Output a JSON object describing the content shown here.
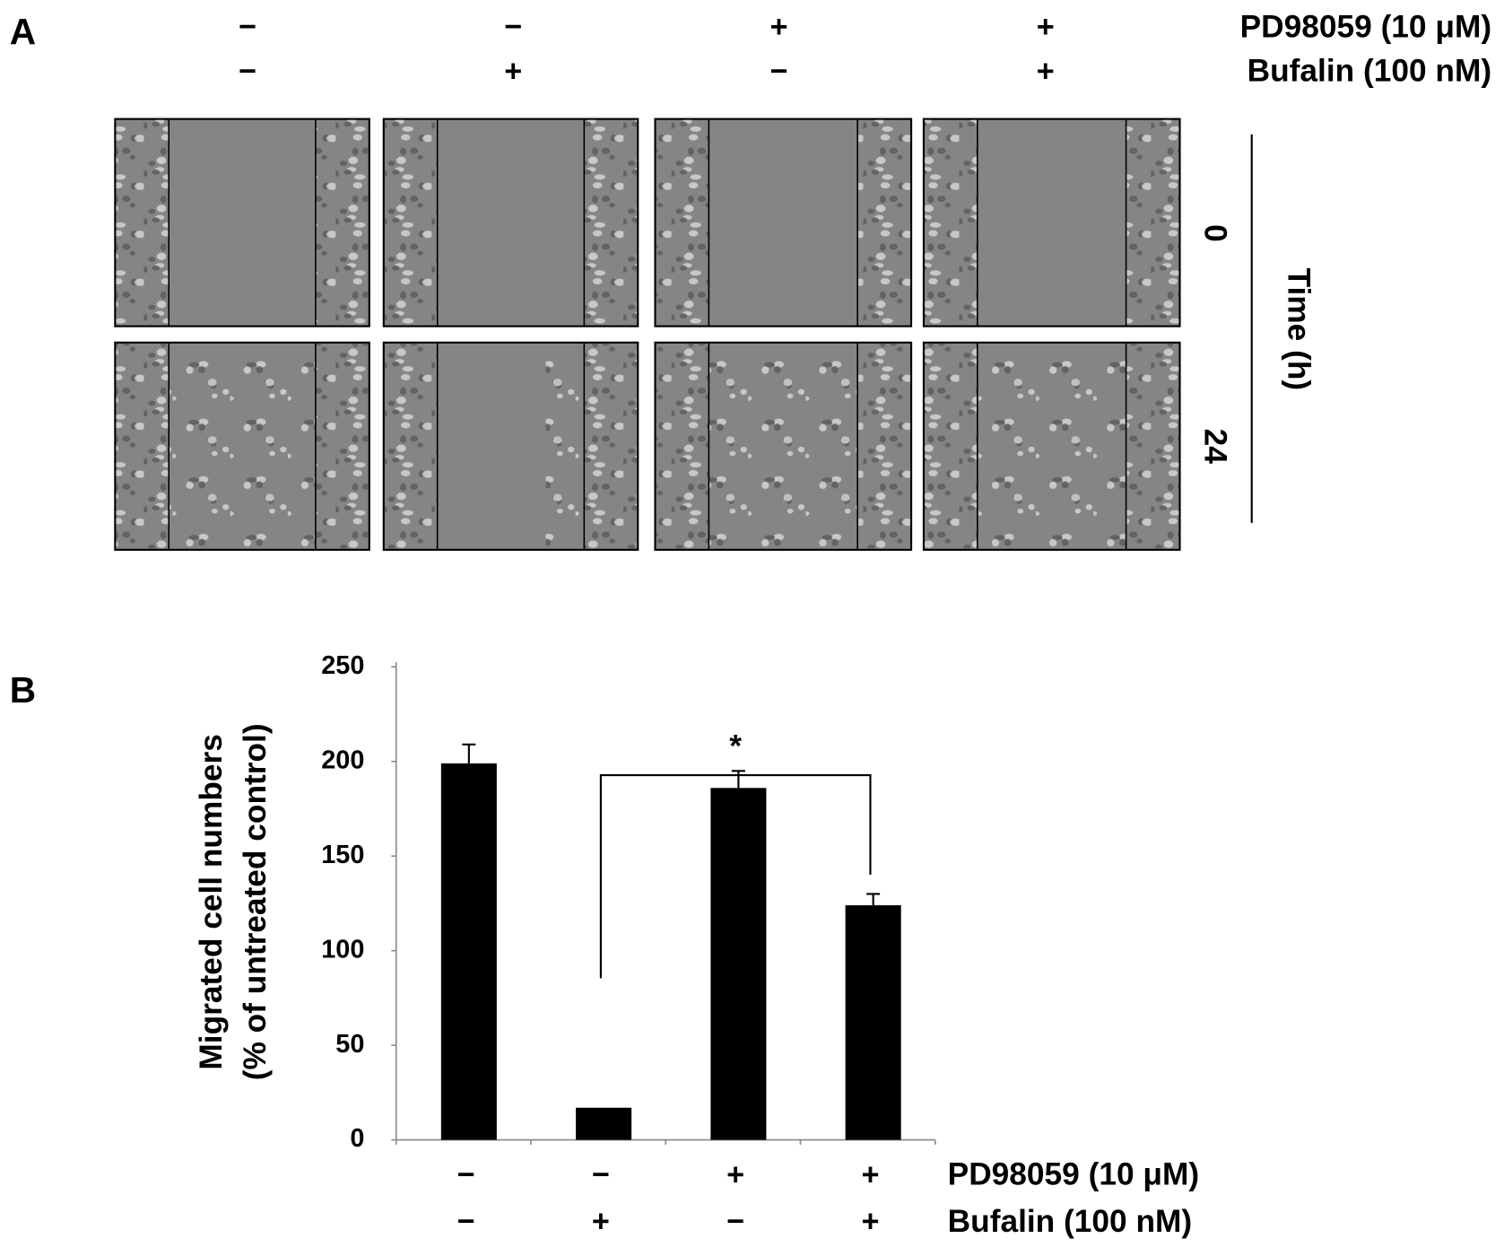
{
  "panel_a": {
    "panel_label": "A",
    "treatments": [
      {
        "name": "PD98059 (10 μM)",
        "signs": [
          "−",
          "−",
          "+",
          "+"
        ]
      },
      {
        "name": "Bufalin (100 nM)",
        "signs": [
          "−",
          "+",
          "−",
          "+"
        ]
      }
    ],
    "time": {
      "label": "Time (h)",
      "rows": [
        "0",
        "24"
      ]
    }
  },
  "chart_data": {
    "type": "bar",
    "panel_label": "B",
    "y_label": [
      "Migrated cell numbers",
      "(% of untreated control)"
    ],
    "treatments": [
      {
        "name": "PD98059 (10 μM)",
        "signs": [
          "−",
          "−",
          "+",
          "+"
        ]
      },
      {
        "name": "Bufalin (100 nM)",
        "signs": [
          "−",
          "+",
          "−",
          "+"
        ]
      }
    ],
    "values": [
      199,
      17,
      186,
      124
    ],
    "errors": [
      10,
      null,
      9,
      6
    ],
    "color": "#000000",
    "ylim": [
      0,
      250
    ],
    "yticks": [
      0,
      50,
      100,
      150,
      200,
      250
    ],
    "annotation": {
      "text": "*",
      "from": 1,
      "to": 3
    }
  }
}
